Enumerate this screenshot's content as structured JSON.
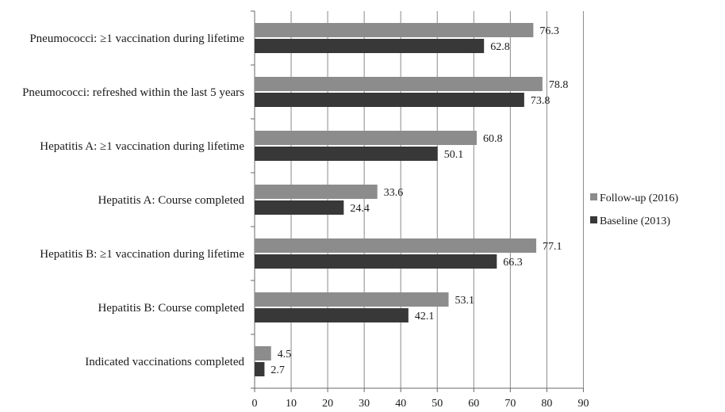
{
  "chart_data": {
    "type": "bar",
    "orientation": "horizontal",
    "categories": [
      "Pneumococci: ≥1 vaccination during lifetime",
      "Pneumococci: refreshed within the last 5 years",
      "Hepatitis A: ≥1 vaccination during lifetime",
      "Hepatitis A: Course completed",
      "Hepatitis B: ≥1 vaccination during lifetime",
      "Hepatitis B: Course completed",
      "Indicated vaccinations completed"
    ],
    "series": [
      {
        "name": "Follow-up (2016)",
        "color": "#8c8c8c",
        "values": [
          76.3,
          78.8,
          60.8,
          33.6,
          77.1,
          53.1,
          4.5
        ]
      },
      {
        "name": "Baseline (2013)",
        "color": "#383838",
        "values": [
          62.8,
          73.8,
          50.1,
          24.4,
          66.3,
          42.1,
          2.7
        ]
      }
    ],
    "x_ticks": [
      "0",
      "10",
      "20",
      "30",
      "40",
      "50",
      "60",
      "70",
      "80",
      "90"
    ],
    "xlim": [
      0,
      90
    ],
    "grid": true,
    "legend_position": "right",
    "title": "",
    "xlabel": "",
    "ylabel": ""
  }
}
